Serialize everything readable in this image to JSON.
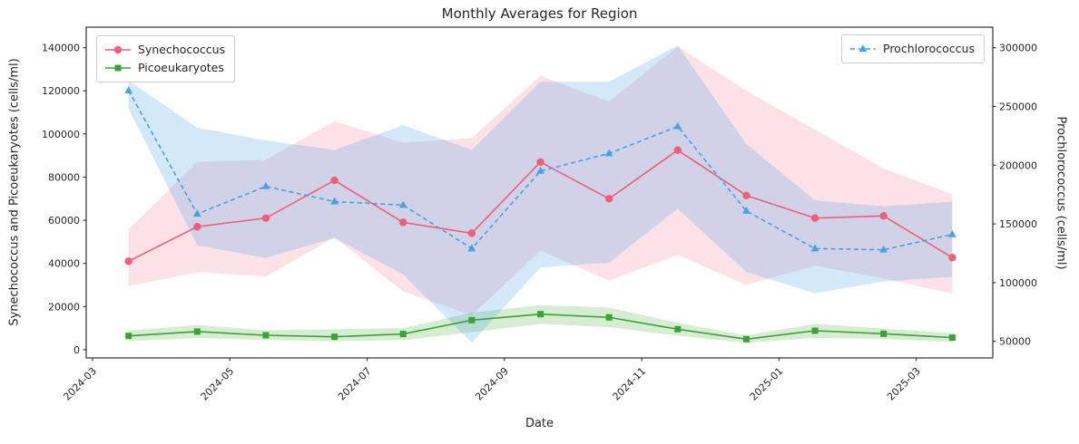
{
  "chart_data": {
    "type": "line",
    "title": "Monthly Averages for Region",
    "xlabel": "Date",
    "ylabel_left": "Synechococcus and Picoeukaryotes (cells/ml)",
    "ylabel_right": "Prochlorococcus (cells/ml)",
    "categories": [
      "2024-03",
      "2024-04",
      "2024-05",
      "2024-06",
      "2024-07",
      "2024-08",
      "2024-09",
      "2024-10",
      "2024-11",
      "2024-12",
      "2025-01",
      "2025-02",
      "2025-03"
    ],
    "xticks": [
      {
        "label": "2024-03",
        "pos": -0.525
      },
      {
        "label": "2024-05",
        "pos": 1.475
      },
      {
        "label": "2024-07",
        "pos": 3.475
      },
      {
        "label": "2024-09",
        "pos": 5.475
      },
      {
        "label": "2024-11",
        "pos": 7.475
      },
      {
        "label": "2025-01",
        "pos": 9.475
      },
      {
        "label": "2025-03",
        "pos": 11.475
      }
    ],
    "xlim": [
      -0.617,
      12.59
    ],
    "ylim_left": [
      -3800,
      149500
    ],
    "ylim_right": [
      35900,
      317500
    ],
    "yticks_left": [
      0,
      20000,
      40000,
      60000,
      80000,
      100000,
      120000,
      140000
    ],
    "yticks_right": [
      50000,
      100000,
      150000,
      200000,
      250000,
      300000
    ],
    "grid": false,
    "legend_left_entries": [
      "Synechococcus",
      "Picoeukaryotes"
    ],
    "legend_right_entries": [
      "Prochlorococcus"
    ],
    "series": [
      {
        "name": "Synechococcus",
        "axis": "left",
        "color": "#ee5f78",
        "band_color": "rgba(238,95,120,0.18)",
        "marker": "circle",
        "line": "solid",
        "values": [
          41000,
          57000,
          61000,
          78500,
          59000,
          54000,
          87000,
          70000,
          92500,
          71500,
          61000,
          62000,
          42700
        ],
        "band_low": [
          29500,
          36000,
          34000,
          52000,
          27000,
          16000,
          46000,
          32000,
          44000,
          30000,
          39000,
          33000,
          26000
        ],
        "band_high": [
          55800,
          87000,
          88000,
          106000,
          96000,
          98000,
          127000,
          115000,
          140500,
          120000,
          102000,
          84000,
          72000
        ]
      },
      {
        "name": "Picoeukaryotes",
        "axis": "left",
        "color": "#3ba336",
        "band_color": "rgba(70,170,55,0.22)",
        "marker": "square",
        "line": "solid",
        "values": [
          6400,
          8400,
          6700,
          6000,
          7300,
          13700,
          16500,
          15000,
          9500,
          4900,
          8800,
          7400,
          5600
        ],
        "band_low": [
          4000,
          5500,
          4500,
          3900,
          4500,
          8100,
          12000,
          10500,
          6500,
          3200,
          5500,
          5000,
          3500
        ],
        "band_high": [
          8800,
          11500,
          9000,
          9500,
          10000,
          17200,
          20600,
          19500,
          12500,
          6600,
          12000,
          9800,
          7700
        ]
      },
      {
        "name": "Prochlorococcus",
        "axis": "right",
        "color": "#47a1e3",
        "band_color": "rgba(80,165,230,0.25)",
        "marker": "triangle",
        "line": "dashed",
        "values": [
          263500,
          158500,
          182000,
          169000,
          166000,
          129000,
          195000,
          210000,
          233000,
          161000,
          129000,
          128000,
          141000
        ],
        "band_low": [
          248000,
          132000,
          121000,
          138000,
          107000,
          49000,
          113000,
          117000,
          163000,
          109000,
          91000,
          101000,
          105000
        ],
        "band_high": [
          272000,
          232000,
          221000,
          213000,
          234000,
          213000,
          271000,
          271000,
          302000,
          218000,
          170000,
          165000,
          169000
        ]
      }
    ]
  }
}
